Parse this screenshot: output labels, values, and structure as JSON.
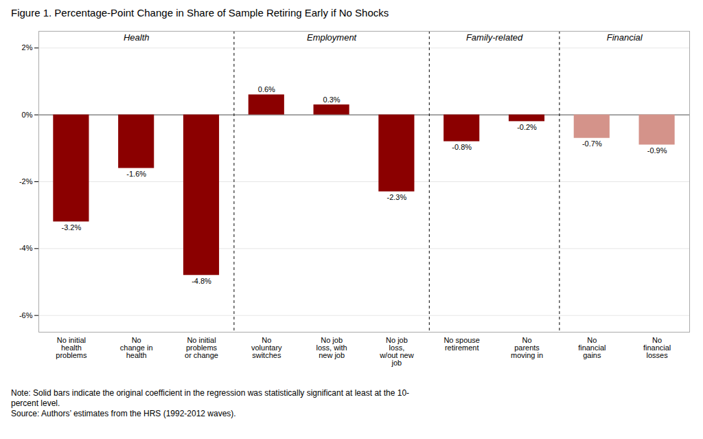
{
  "chart_data": {
    "type": "bar",
    "title": "Figure 1. Percentage-Point Change in Share of Sample Retiring Early if No Shocks",
    "categories": [
      "No initial\nhealth\nproblems",
      "No\nchange in\nhealth",
      "No initial\nproblems\nor change",
      "No\nvoluntary\nswitches",
      "No job\nloss, with\nnew job",
      "No job\nloss,\nw/out new\njob",
      "No spouse\nretirement",
      "No\nparents\nmoving in",
      "No\nfinancial\ngains",
      "No\nfinancial\nlosses"
    ],
    "values": [
      -3.2,
      -1.6,
      -4.8,
      0.6,
      0.3,
      -2.3,
      -0.8,
      -0.2,
      -0.7,
      -0.9
    ],
    "value_labels": [
      "-3.2%",
      "-1.6%",
      "-4.8%",
      "0.6%",
      "0.3%",
      "-2.3%",
      "-0.8%",
      "-0.2%",
      "-0.7%",
      "-0.9%"
    ],
    "data_labels": true,
    "colors": [
      "#8B0000",
      "#8B0000",
      "#8B0000",
      "#8B0000",
      "#8B0000",
      "#8B0000",
      "#8B0000",
      "#8B0000",
      "#d4938a",
      "#d4938a"
    ],
    "groups": [
      "Health",
      "Health",
      "Health",
      "Employment",
      "Employment",
      "Employment",
      "Family-related",
      "Family-related",
      "Financial",
      "Financial"
    ],
    "ylim": [
      -6.5,
      2.5
    ],
    "yticks": [
      {
        "value": -6,
        "label": "-6%"
      },
      {
        "value": -4,
        "label": "-4%"
      },
      {
        "value": -2,
        "label": "-2%"
      },
      {
        "value": 0,
        "label": "0%"
      },
      {
        "value": 2,
        "label": "2%"
      }
    ],
    "grid": true,
    "notes": [
      "Note: Solid bars indicate the original coefficient in the regression was statistically significant at least at the 10-",
      "percent level.",
      "Source: Authors’ estimates from the HRS (1992-2012 waves)."
    ]
  }
}
